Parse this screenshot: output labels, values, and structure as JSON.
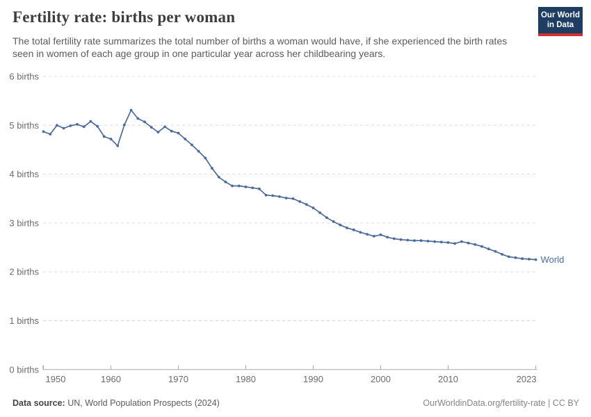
{
  "header": {
    "title": "Fertility rate: births per woman",
    "subtitle": "The total fertility rate summarizes the total number of births a woman would have, if she experienced the birth rates seen in women of each age group in one particular year across her childbearing years."
  },
  "logo": {
    "line1": "Our World",
    "line2": "in Data",
    "bg_color": "#1d3d63",
    "stripe_color": "#d2302c"
  },
  "chart_data": {
    "type": "line",
    "title": "Fertility rate: births per woman",
    "xlabel": "",
    "ylabel": "",
    "xlim": [
      1950,
      2023
    ],
    "ylim": [
      0,
      6
    ],
    "grid": "horizontal-dashed",
    "legend": "end-of-line-label",
    "y_ticks": [
      0,
      1,
      2,
      3,
      4,
      5,
      6
    ],
    "y_tick_suffix": " births",
    "x_ticks": [
      1950,
      1960,
      1970,
      1980,
      1990,
      2000,
      2010,
      2023
    ],
    "series": [
      {
        "name": "World",
        "color": "#4c6a9c",
        "x": [
          1950,
          1951,
          1952,
          1953,
          1954,
          1955,
          1956,
          1957,
          1958,
          1959,
          1960,
          1961,
          1962,
          1963,
          1964,
          1965,
          1966,
          1967,
          1968,
          1969,
          1970,
          1971,
          1972,
          1973,
          1974,
          1975,
          1976,
          1977,
          1978,
          1979,
          1980,
          1981,
          1982,
          1983,
          1984,
          1985,
          1986,
          1987,
          1988,
          1989,
          1990,
          1991,
          1992,
          1993,
          1994,
          1995,
          1996,
          1997,
          1998,
          1999,
          2000,
          2001,
          2002,
          2003,
          2004,
          2005,
          2006,
          2007,
          2008,
          2009,
          2010,
          2011,
          2012,
          2013,
          2014,
          2015,
          2016,
          2017,
          2018,
          2019,
          2020,
          2021,
          2022,
          2023
        ],
        "values": [
          4.87,
          4.82,
          5.0,
          4.94,
          4.99,
          5.02,
          4.97,
          5.08,
          4.98,
          4.77,
          4.72,
          4.58,
          5.01,
          5.31,
          5.14,
          5.07,
          4.96,
          4.86,
          4.97,
          4.88,
          4.84,
          4.72,
          4.6,
          4.47,
          4.33,
          4.12,
          3.94,
          3.84,
          3.76,
          3.76,
          3.74,
          3.72,
          3.7,
          3.57,
          3.56,
          3.54,
          3.51,
          3.5,
          3.44,
          3.38,
          3.31,
          3.21,
          3.11,
          3.03,
          2.96,
          2.9,
          2.86,
          2.81,
          2.77,
          2.73,
          2.76,
          2.71,
          2.68,
          2.66,
          2.65,
          2.64,
          2.64,
          2.63,
          2.62,
          2.61,
          2.6,
          2.58,
          2.62,
          2.59,
          2.56,
          2.52,
          2.47,
          2.42,
          2.36,
          2.31,
          2.29,
          2.27,
          2.26,
          2.25
        ]
      }
    ]
  },
  "footer": {
    "source_label": "Data source:",
    "source_text": " UN, World Population Prospects (2024)",
    "credit": "OurWorldinData.org/fertility-rate | CC BY"
  }
}
